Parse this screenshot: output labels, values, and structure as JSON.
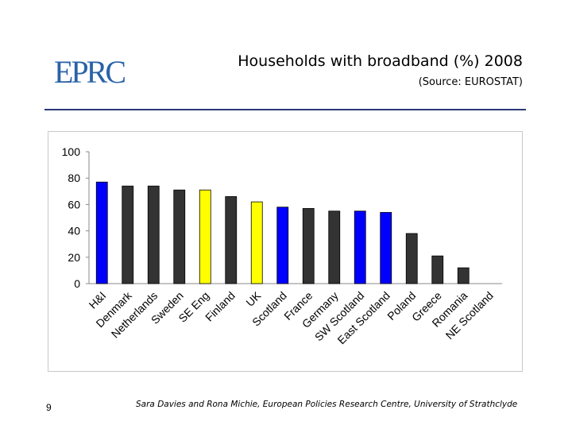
{
  "logo": {
    "text": "EPRC",
    "color": "#2a62a8"
  },
  "header": {
    "title": "Households with broadband (%) 2008",
    "source": "(Source: EUROSTAT)"
  },
  "footer": {
    "page_number": "9",
    "credit": "Sara Davies and Rona Michie, European Policies Research Centre, University of Strathclyde"
  },
  "colors": {
    "blue": "#0000ff",
    "yellow": "#ffff00",
    "dark": "#333333",
    "rule": "#2b3a7a"
  },
  "chart_data": {
    "type": "bar",
    "title": "Households with broadband (%) 2008",
    "xlabel": "",
    "ylabel": "",
    "ylim": [
      0,
      100
    ],
    "yticks": [
      0,
      20,
      40,
      60,
      80,
      100
    ],
    "grid": false,
    "categories": [
      "H&I",
      "Denmark",
      "Netherlands",
      "Sweden",
      "SE Eng",
      "Finland",
      "UK",
      "Scotland",
      "France",
      "Germany",
      "SW Scotland",
      "East Scotland",
      "Poland",
      "Greece",
      "Romania",
      "NE Scotland"
    ],
    "values": [
      77,
      74,
      74,
      71,
      71,
      66,
      62,
      58,
      57,
      55,
      55,
      54,
      38,
      21,
      12,
      0
    ],
    "bar_colors": [
      "blue",
      "dark",
      "dark",
      "dark",
      "yellow",
      "dark",
      "yellow",
      "blue",
      "dark",
      "dark",
      "blue",
      "blue",
      "dark",
      "dark",
      "dark",
      "dark"
    ]
  }
}
